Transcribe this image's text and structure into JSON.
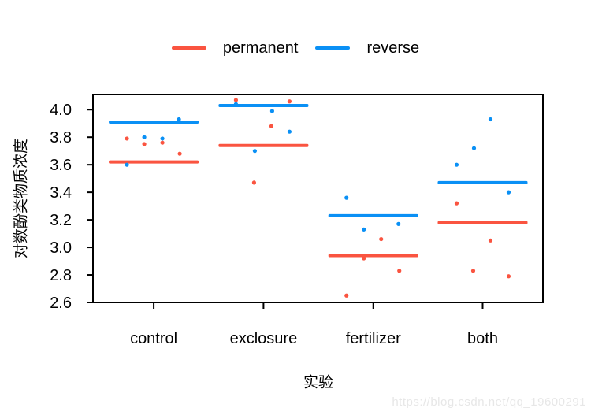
{
  "watermark": "https://blog.csdn.net/qq_19600291",
  "colors": {
    "permanent": "#fa5440",
    "reverse": "#0a90f5",
    "axis": "#000000",
    "watermark": "#e7e7e7",
    "background": "#ffffff"
  },
  "legend": {
    "items": [
      {
        "label": "permanent",
        "color": "#fa5440"
      },
      {
        "label": "reverse",
        "color": "#0a90f5"
      }
    ]
  },
  "chart_data": {
    "type": "scatter",
    "subtype": "grouped-stripchart-with-mean-bars",
    "title": "",
    "xlabel": "实验",
    "ylabel": "对数酚类物质浓度",
    "categories": [
      "control",
      "exclosure",
      "fertilizer",
      "both"
    ],
    "yticks": [
      2.6,
      2.8,
      3.0,
      3.2,
      3.4,
      3.6,
      3.8,
      4.0
    ],
    "ylim": [
      2.6,
      4.11
    ],
    "grid": false,
    "legend_position": "top",
    "points_format": "[category_index, value, jitter_px]",
    "series": [
      {
        "name": "permanent",
        "color": "#fa5440",
        "means": [
          3.62,
          3.74,
          2.94,
          3.18
        ],
        "points": [
          [
            0,
            3.79,
            -34
          ],
          [
            0,
            3.75,
            -12
          ],
          [
            0,
            3.76,
            11
          ],
          [
            0,
            3.68,
            33
          ],
          [
            1,
            4.07,
            -35
          ],
          [
            1,
            3.47,
            -12
          ],
          [
            1,
            3.88,
            10
          ],
          [
            1,
            4.06,
            33
          ],
          [
            2,
            2.65,
            -34
          ],
          [
            2,
            2.92,
            -12
          ],
          [
            2,
            3.06,
            10
          ],
          [
            2,
            2.83,
            33
          ],
          [
            3,
            3.32,
            -33
          ],
          [
            3,
            2.83,
            -12
          ],
          [
            3,
            3.05,
            10
          ],
          [
            3,
            2.79,
            33
          ]
        ]
      },
      {
        "name": "reverse",
        "color": "#0a90f5",
        "means": [
          3.91,
          4.03,
          3.23,
          3.47
        ],
        "points": [
          [
            0,
            3.6,
            -34
          ],
          [
            0,
            3.8,
            -12
          ],
          [
            0,
            3.79,
            11
          ],
          [
            0,
            3.93,
            32
          ],
          [
            1,
            4.04,
            -35
          ],
          [
            1,
            3.7,
            -11
          ],
          [
            1,
            3.99,
            11
          ],
          [
            1,
            3.84,
            33
          ],
          [
            2,
            3.36,
            -34
          ],
          [
            2,
            3.13,
            -12
          ],
          [
            2,
            3.17,
            32
          ],
          [
            3,
            3.6,
            -33
          ],
          [
            3,
            3.72,
            -11
          ],
          [
            3,
            3.93,
            10
          ],
          [
            3,
            3.4,
            33
          ]
        ]
      }
    ]
  }
}
